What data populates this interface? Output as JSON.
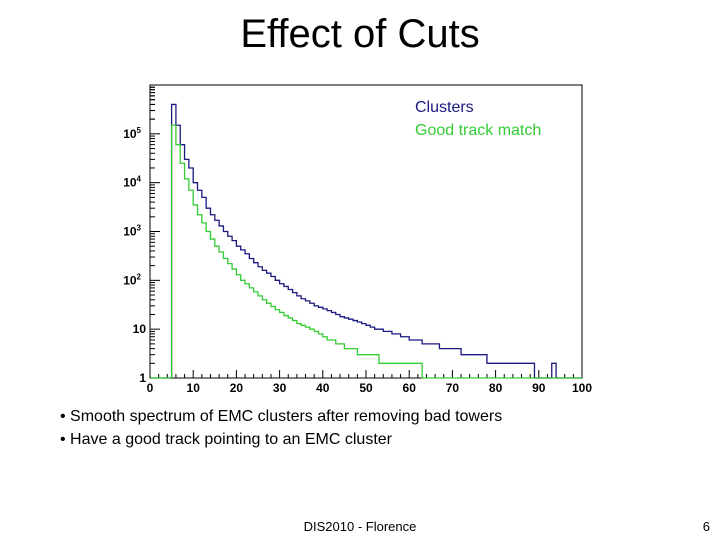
{
  "slide": {
    "title": "Effect of Cuts",
    "bullets": [
      "• Smooth spectrum of EMC clusters after removing bad towers",
      "• Have a good track pointing to an EMC cluster"
    ],
    "footer": "DIS2010 - Florence",
    "page_number": "6"
  },
  "chart_data": {
    "type": "histogram",
    "xlim": [
      0,
      100
    ],
    "ylim": [
      1,
      1000000
    ],
    "yscale": "log",
    "x_ticks": [
      "0",
      "10",
      "20",
      "30",
      "40",
      "50",
      "60",
      "70",
      "80",
      "90",
      "100"
    ],
    "y_ticks": [
      {
        "value": 1,
        "base": "1",
        "exp": ""
      },
      {
        "value": 10,
        "base": "10",
        "exp": ""
      },
      {
        "value": 100,
        "base": "10",
        "exp": "2"
      },
      {
        "value": 1000,
        "base": "10",
        "exp": "3"
      },
      {
        "value": 10000,
        "base": "10",
        "exp": "4"
      },
      {
        "value": 100000,
        "base": "10",
        "exp": "5"
      }
    ],
    "legend_position": "top-right",
    "bin_width": 1,
    "series": [
      {
        "name": "Clusters",
        "color": "#1a1a80",
        "values": [
          0,
          0,
          0,
          0,
          0,
          400000,
          150000,
          60000,
          30000,
          20000,
          10000,
          7000,
          5000,
          3000,
          2200,
          1700,
          1300,
          1000,
          800,
          650,
          500,
          420,
          350,
          280,
          230,
          190,
          160,
          140,
          120,
          100,
          85,
          75,
          65,
          56,
          48,
          42,
          38,
          34,
          30,
          28,
          26,
          24,
          22,
          20,
          18,
          17,
          16,
          15,
          14,
          13,
          12,
          11,
          10,
          10,
          9,
          9,
          8,
          8,
          7,
          7,
          6,
          6,
          6,
          5,
          5,
          5,
          5,
          4,
          4,
          4,
          4,
          4,
          3,
          3,
          3,
          3,
          3,
          3,
          2,
          2,
          2,
          2,
          2,
          2,
          2,
          2,
          2,
          2,
          2,
          1,
          1,
          1,
          1,
          2,
          1,
          1,
          1,
          1,
          1,
          1
        ]
      },
      {
        "name": "Good track match",
        "color": "#33cc33",
        "values": [
          0,
          0,
          0,
          0,
          0,
          150000,
          60000,
          25000,
          12000,
          7000,
          3500,
          2200,
          1500,
          1000,
          700,
          500,
          380,
          280,
          220,
          170,
          130,
          100,
          85,
          70,
          58,
          48,
          40,
          34,
          29,
          25,
          22,
          19,
          17,
          15,
          13,
          12,
          11,
          10,
          9,
          8,
          7,
          6,
          6,
          5,
          5,
          4,
          4,
          4,
          3,
          3,
          3,
          3,
          3,
          2,
          2,
          2,
          2,
          2,
          2,
          2,
          2,
          2,
          2,
          1,
          1,
          1,
          1,
          1,
          1,
          1,
          1,
          1,
          1,
          1,
          1,
          1,
          1,
          1,
          1,
          1,
          1,
          1,
          1,
          1,
          1,
          1,
          1,
          1,
          1,
          1,
          1,
          1,
          1,
          1,
          1,
          1,
          1,
          1,
          1,
          1
        ]
      }
    ]
  }
}
